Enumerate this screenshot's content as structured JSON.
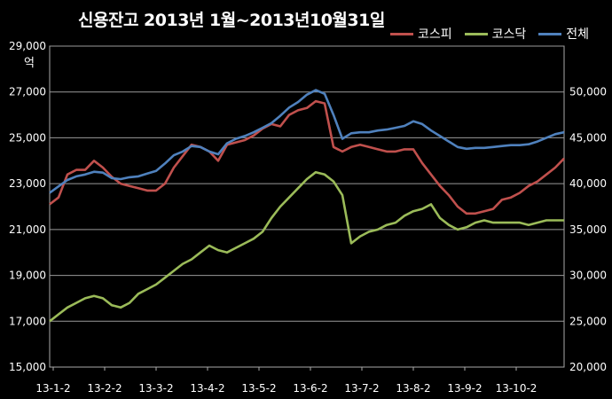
{
  "chart_data": {
    "type": "line",
    "title": "신용잔고 2013년 1월~2013년10월31일",
    "left_axis_unit": "억",
    "left_axis": {
      "range": [
        15000,
        29000
      ],
      "ticks": [
        "15,000",
        "17,000",
        "19,000",
        "21,000",
        "23,000",
        "25,000",
        "27,000",
        "29,000"
      ]
    },
    "right_axis": {
      "range": [
        20000,
        55000
      ],
      "ticks": [
        "20,000",
        "25,000",
        "30,000",
        "35,000",
        "40,000",
        "45,000",
        "50,000"
      ]
    },
    "x_tick_labels": [
      "13-1-2",
      "13-2-2",
      "13-3-2",
      "13-4-2",
      "13-5-2",
      "13-6-2",
      "13-7-2",
      "13-8-2",
      "13-9-2",
      "13-10-2"
    ],
    "grid": "horizontal",
    "legend_position": "top-right",
    "series": [
      {
        "name": "코스피",
        "axis": "left",
        "color": "#c0504d",
        "values": [
          22100,
          22400,
          23400,
          23600,
          23600,
          24000,
          23700,
          23300,
          23000,
          22900,
          22800,
          22700,
          22700,
          23000,
          23700,
          24200,
          24700,
          24600,
          24400,
          24000,
          24700,
          24800,
          24900,
          25100,
          25400,
          25600,
          25500,
          26000,
          26200,
          26300,
          26600,
          26500,
          24600,
          24400,
          24600,
          24700,
          24600,
          24500,
          24400,
          24400,
          24500,
          24500,
          23900,
          23400,
          22900,
          22500,
          22000,
          21700,
          21700,
          21800,
          21900,
          22300,
          22400,
          22600,
          22900,
          23100,
          23400,
          23700,
          24100
        ]
      },
      {
        "name": "코스닥",
        "axis": "left",
        "color": "#9bbb59",
        "values": [
          17000,
          17300,
          17600,
          17800,
          18000,
          18100,
          18000,
          17700,
          17600,
          17800,
          18200,
          18400,
          18600,
          18900,
          19200,
          19500,
          19700,
          20000,
          20300,
          20100,
          20000,
          20200,
          20400,
          20600,
          20900,
          21500,
          22000,
          22400,
          22800,
          23200,
          23500,
          23400,
          23100,
          22500,
          20400,
          20700,
          20900,
          21000,
          21200,
          21300,
          21600,
          21800,
          21900,
          22100,
          21500,
          21200,
          21000,
          21100,
          21300,
          21400,
          21300,
          21300,
          21300,
          21300,
          21200,
          21300,
          21400,
          21400,
          21400
        ]
      },
      {
        "name": "전체",
        "axis": "right",
        "color": "#4f81bd",
        "values": [
          39000,
          39700,
          40400,
          40800,
          41000,
          41300,
          41200,
          40600,
          40500,
          40700,
          40800,
          41100,
          41400,
          42200,
          43100,
          43500,
          44100,
          44000,
          43500,
          43200,
          44400,
          44900,
          45200,
          45600,
          46100,
          46600,
          47400,
          48300,
          48900,
          49700,
          50200,
          49800,
          47500,
          44900,
          45500,
          45600,
          45600,
          45800,
          45900,
          46100,
          46300,
          46800,
          46500,
          45800,
          45200,
          44600,
          44000,
          43800,
          43900,
          43900,
          44000,
          44100,
          44200,
          44200,
          44300,
          44600,
          45000,
          45400,
          45600
        ]
      }
    ]
  }
}
